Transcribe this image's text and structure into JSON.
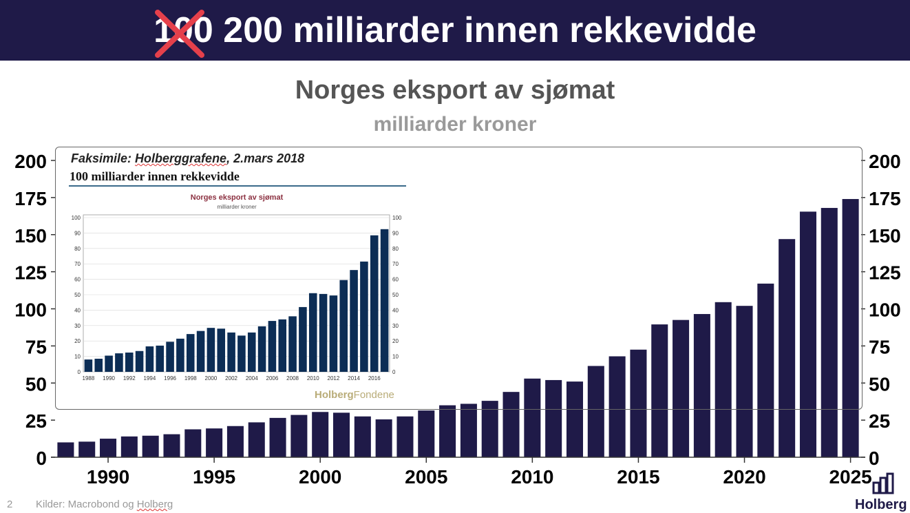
{
  "banner": {
    "struck_number": "100",
    "rest": " 200 milliarder innen rekkevidde"
  },
  "header": {
    "title": "Norges eksport av sjømat",
    "subtitle": "milliarder kroner"
  },
  "chart_data": [
    {
      "type": "bar",
      "title": "Norges eksport av sjømat",
      "subtitle": "milliarder kroner",
      "x": [
        1988,
        1989,
        1990,
        1991,
        1992,
        1993,
        1994,
        1995,
        1996,
        1997,
        1998,
        1999,
        2000,
        2001,
        2002,
        2003,
        2004,
        2005,
        2006,
        2007,
        2008,
        2009,
        2010,
        2011,
        2012,
        2013,
        2014,
        2015,
        2016,
        2017,
        2018,
        2019,
        2020,
        2021,
        2022,
        2023,
        2024,
        2025
      ],
      "values": [
        10,
        10.5,
        12.5,
        14,
        14.5,
        15.5,
        18.8,
        19.4,
        21,
        23.5,
        26.5,
        28.5,
        30.5,
        30,
        27.5,
        25.5,
        27.5,
        31.5,
        35,
        36,
        38,
        44,
        53,
        52,
        51,
        61.5,
        68,
        72.5,
        89.5,
        92.5,
        96.5,
        104.5,
        102,
        117,
        147,
        165.5,
        168,
        174
      ],
      "xticks": [
        1990,
        1995,
        2000,
        2005,
        2010,
        2015,
        2020,
        2025
      ],
      "yticks": [
        0,
        25,
        50,
        75,
        100,
        125,
        150,
        175,
        200
      ],
      "ylim": [
        0,
        200
      ],
      "xlabel": "",
      "ylabel": "",
      "color": "#1f1a48"
    },
    {
      "type": "bar",
      "title": "Norges eksport av sjømat",
      "subtitle": "milliarder kroner",
      "x": [
        1988,
        1989,
        1990,
        1991,
        1992,
        1993,
        1994,
        1995,
        1996,
        1997,
        1998,
        1999,
        2000,
        2001,
        2002,
        2003,
        2004,
        2005,
        2006,
        2007,
        2008,
        2009,
        2010,
        2011,
        2012,
        2013,
        2014,
        2015,
        2016,
        2017
      ],
      "values": [
        8,
        8.5,
        10.5,
        12,
        12.5,
        13.5,
        16.5,
        17,
        19.5,
        21.5,
        24.5,
        26.5,
        28.5,
        28,
        25.5,
        23.5,
        25.5,
        29.5,
        33,
        34,
        36,
        42,
        51,
        50.5,
        49.5,
        59.5,
        66,
        71.5,
        88.5,
        92.5
      ],
      "xticks": [
        "1988",
        "1990",
        "1992",
        "1994",
        "1996",
        "1998",
        "2000",
        "2002",
        "2004",
        "2006",
        "2008",
        "2010",
        "2012",
        "2014",
        "2016"
      ],
      "yticks": [
        0,
        10,
        20,
        30,
        40,
        50,
        60,
        70,
        80,
        90,
        100
      ],
      "ylim": [
        0,
        100
      ],
      "xlabel": "",
      "ylabel": "",
      "color": "#0c2d55"
    }
  ],
  "inset": {
    "caption_prefix": "Faksimile: ",
    "caption_underlined": "Holberggrafene",
    "caption_suffix": ", 2.mars 2018",
    "headline": "100 milliarder innen rekkevidde",
    "brand_bold": "Holberg",
    "brand_rest": "Fondene"
  },
  "footer": {
    "page": "2",
    "source_prefix": "Kilder: Macrobond og ",
    "source_underlined": "Holberg"
  },
  "logo": {
    "text": "Holberg"
  },
  "colors": {
    "navy": "#1f1a48",
    "cross": "#e5404b",
    "inset_bar": "#0c2d55",
    "brand_gold": "#b9ac78"
  }
}
